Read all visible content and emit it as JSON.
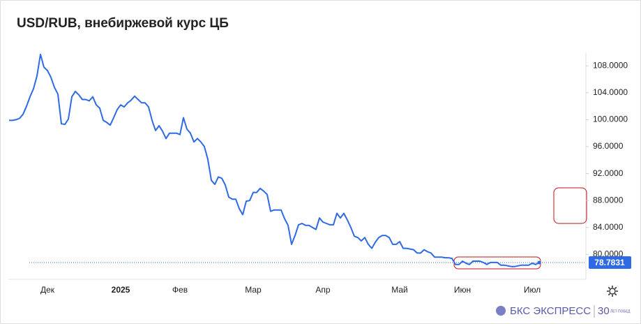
{
  "chart_data": {
    "type": "line",
    "title": "USD/RUB, внебиржевой курс ЦБ",
    "categories": [
      null,
      null,
      null,
      null,
      null,
      null,
      null,
      null,
      null,
      null,
      null,
      "Дек",
      null,
      null,
      null,
      null,
      null,
      null,
      null,
      null,
      null,
      null,
      null,
      null,
      null,
      null,
      null,
      null,
      null,
      null,
      null,
      null,
      "2025",
      null,
      null,
      null,
      null,
      null,
      null,
      null,
      null,
      null,
      null,
      null,
      null,
      null,
      null,
      null,
      null,
      "Фев",
      null,
      null,
      null,
      null,
      null,
      null,
      null,
      null,
      null,
      null,
      null,
      null,
      null,
      null,
      null,
      null,
      null,
      null,
      null,
      null,
      "Мар",
      null,
      null,
      null,
      null,
      null,
      null,
      null,
      null,
      null,
      null,
      null,
      null,
      null,
      null,
      null,
      null,
      null,
      null,
      null,
      "Апр",
      null,
      null,
      null,
      null,
      null,
      null,
      null,
      null,
      null,
      null,
      null,
      null,
      null,
      null,
      null,
      null,
      null,
      null,
      null,
      null,
      null,
      "Май",
      null,
      null,
      null,
      null,
      null,
      null,
      null,
      null,
      null,
      null,
      null,
      null,
      null,
      null,
      null,
      null,
      null,
      "Июн",
      null,
      null,
      null,
      null,
      null,
      null,
      null,
      null,
      null,
      null,
      null,
      null,
      null,
      null,
      null,
      null,
      null,
      null,
      null,
      "Июл",
      null,
      null
    ],
    "values": [
      99.9,
      99.9,
      100.0,
      100.2,
      100.8,
      102.0,
      103.4,
      104.6,
      106.5,
      109.7,
      107.8,
      107.3,
      106.3,
      104.8,
      103.8,
      99.4,
      99.3,
      100.1,
      103.4,
      104.2,
      103.7,
      103.0,
      103.0,
      102.8,
      103.4,
      102.2,
      101.7,
      99.9,
      99.6,
      99.2,
      100.3,
      101.5,
      102.2,
      101.9,
      102.5,
      102.9,
      103.5,
      103.0,
      102.5,
      102.5,
      101.9,
      99.9,
      98.4,
      99.1,
      98.3,
      97.2,
      98.0,
      98.0,
      98.0,
      97.8,
      100.3,
      98.6,
      98.0,
      96.7,
      97.2,
      96.7,
      96.0,
      94.1,
      91.0,
      90.4,
      91.5,
      91.3,
      90.3,
      88.5,
      88.2,
      88.2,
      86.8,
      85.9,
      87.9,
      88.0,
      89.2,
      89.2,
      89.8,
      89.4,
      88.9,
      86.4,
      86.6,
      86.6,
      86.6,
      85.3,
      84.3,
      81.5,
      82.8,
      84.4,
      84.6,
      84.3,
      84.3,
      84.0,
      83.7,
      85.4,
      84.8,
      84.6,
      84.4,
      84.4,
      86.1,
      85.4,
      86.1,
      85.1,
      84.0,
      82.7,
      82.5,
      82.0,
      82.5,
      81.5,
      80.9,
      81.8,
      82.5,
      82.8,
      82.8,
      82.5,
      81.5,
      81.5,
      81.9,
      80.9,
      80.9,
      80.8,
      80.7,
      80.2,
      80.2,
      80.7,
      80.4,
      80.2,
      79.6,
      79.6,
      79.6,
      79.5,
      79.5,
      79.4,
      78.5,
      78.5,
      79.0,
      78.7,
      78.5,
      79.0,
      79.0,
      79.0,
      78.8,
      78.5,
      78.8,
      78.8,
      78.8,
      78.4,
      78.4,
      78.3,
      78.2,
      78.2,
      78.3,
      78.4,
      78.4,
      78.4,
      78.7,
      78.5,
      78.8
    ],
    "color": "#2f6ae6",
    "last_value": 78.7831,
    "ylim": [
      76.3,
      110
    ],
    "yticks": [
      {
        "value": 80,
        "label": "80.0000"
      },
      {
        "value": 84,
        "label": "84.0000"
      },
      {
        "value": 88,
        "label": "88.0000"
      },
      {
        "value": 92,
        "label": "92.0000"
      },
      {
        "value": 96,
        "label": "96.0000"
      },
      {
        "value": 100,
        "label": "100.0000"
      },
      {
        "value": 104,
        "label": "104.0000"
      },
      {
        "value": 108,
        "label": "108.0000"
      }
    ],
    "footer": {
      "brand": "БКС ЭКСПРЕСС",
      "badge": "30",
      "badge_caption": "ЛЕТ ПОБЕД"
    }
  }
}
